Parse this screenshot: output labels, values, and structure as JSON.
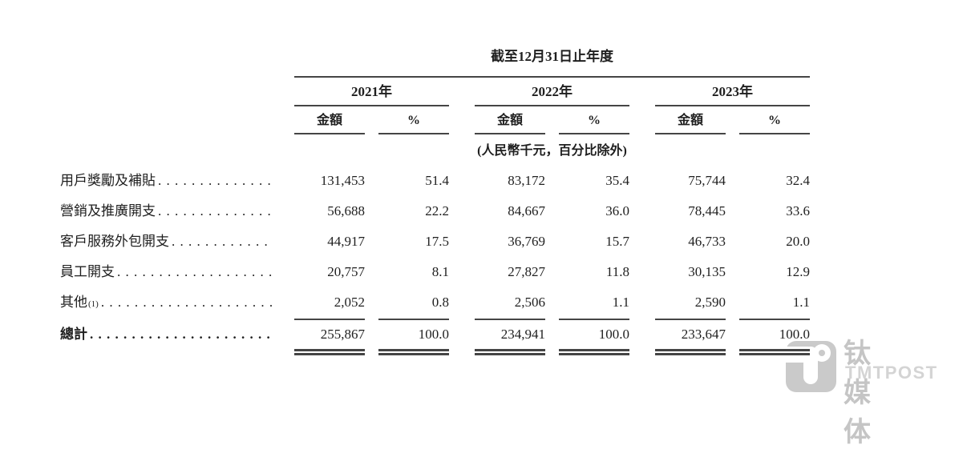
{
  "table": {
    "title": "截至12月31日止年度",
    "unit_note": "(人民幣千元，百分比除外)",
    "year_groups": [
      {
        "label": "2021年"
      },
      {
        "label": "2022年"
      },
      {
        "label": "2023年"
      }
    ],
    "col_headers": {
      "amount": "金額",
      "percent": "%"
    },
    "rows": [
      {
        "label": "用戶獎勵及補貼",
        "sup": "",
        "values": [
          "131,453",
          "51.4",
          "83,172",
          "35.4",
          "75,744",
          "32.4"
        ]
      },
      {
        "label": "營銷及推廣開支",
        "sup": "",
        "values": [
          "56,688",
          "22.2",
          "84,667",
          "36.0",
          "78,445",
          "33.6"
        ]
      },
      {
        "label": "客戶服務外包開支",
        "sup": "",
        "values": [
          "44,917",
          "17.5",
          "36,769",
          "15.7",
          "46,733",
          "20.0"
        ]
      },
      {
        "label": "員工開支",
        "sup": "",
        "values": [
          "20,757",
          "8.1",
          "27,827",
          "11.8",
          "30,135",
          "12.9"
        ]
      },
      {
        "label": "其他",
        "sup": "(1)",
        "values": [
          "2,052",
          "0.8",
          "2,506",
          "1.1",
          "2,590",
          "1.1"
        ]
      }
    ],
    "total_row": {
      "label": "總計",
      "values": [
        "255,867",
        "100.0",
        "234,941",
        "100.0",
        "233,647",
        "100.0"
      ]
    }
  },
  "watermark": {
    "cn": "钛媒体",
    "en": "TMTPOST"
  }
}
